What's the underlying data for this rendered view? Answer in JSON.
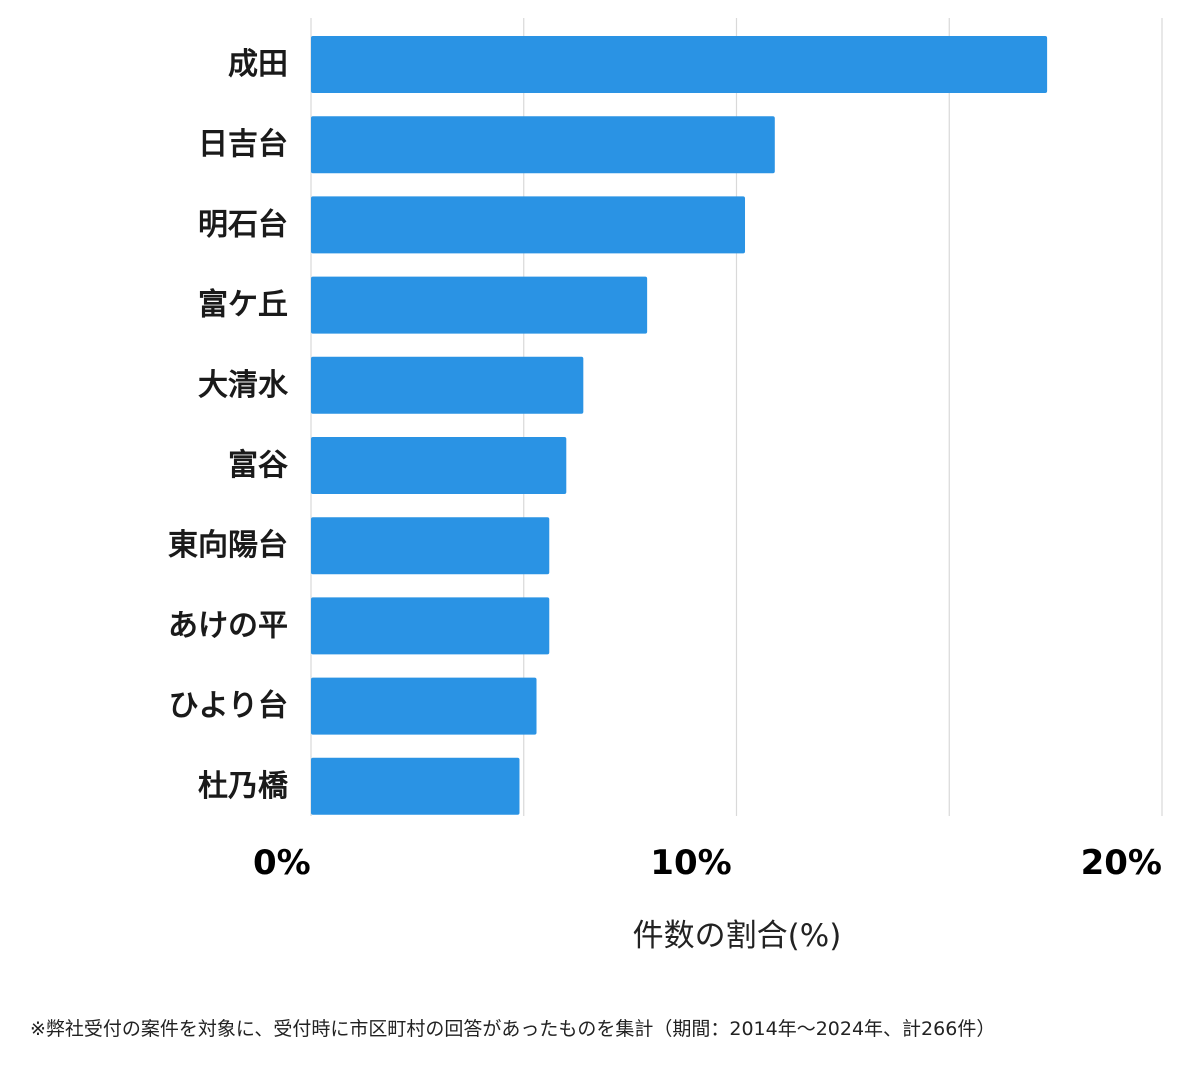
{
  "chart_data": {
    "type": "bar",
    "orientation": "horizontal",
    "categories": [
      "成田",
      "日吉台",
      "明石台",
      "富ケ丘",
      "大清水",
      "富谷",
      "東向陽台",
      "あけの平",
      "ひより台",
      "杜乃橋"
    ],
    "values": [
      17.3,
      10.9,
      10.2,
      7.9,
      6.4,
      6.0,
      5.6,
      5.6,
      5.3,
      4.9
    ],
    "xlabel": "件数の割合(%)",
    "ylabel": "",
    "xlim": [
      0,
      20
    ],
    "tick_values": [
      0,
      10,
      20
    ],
    "tick_labels": [
      "0%",
      "10%",
      "20%"
    ],
    "minor_gridlines": [
      5,
      15
    ],
    "grid": true,
    "bar_color": "#2a93e4",
    "grid_color": "#d9d9d9"
  },
  "footnote": "※弊社受付の案件を対象に、受付時に市区町村の回答があったものを集計（期間：2014年～2024年、計266件）"
}
